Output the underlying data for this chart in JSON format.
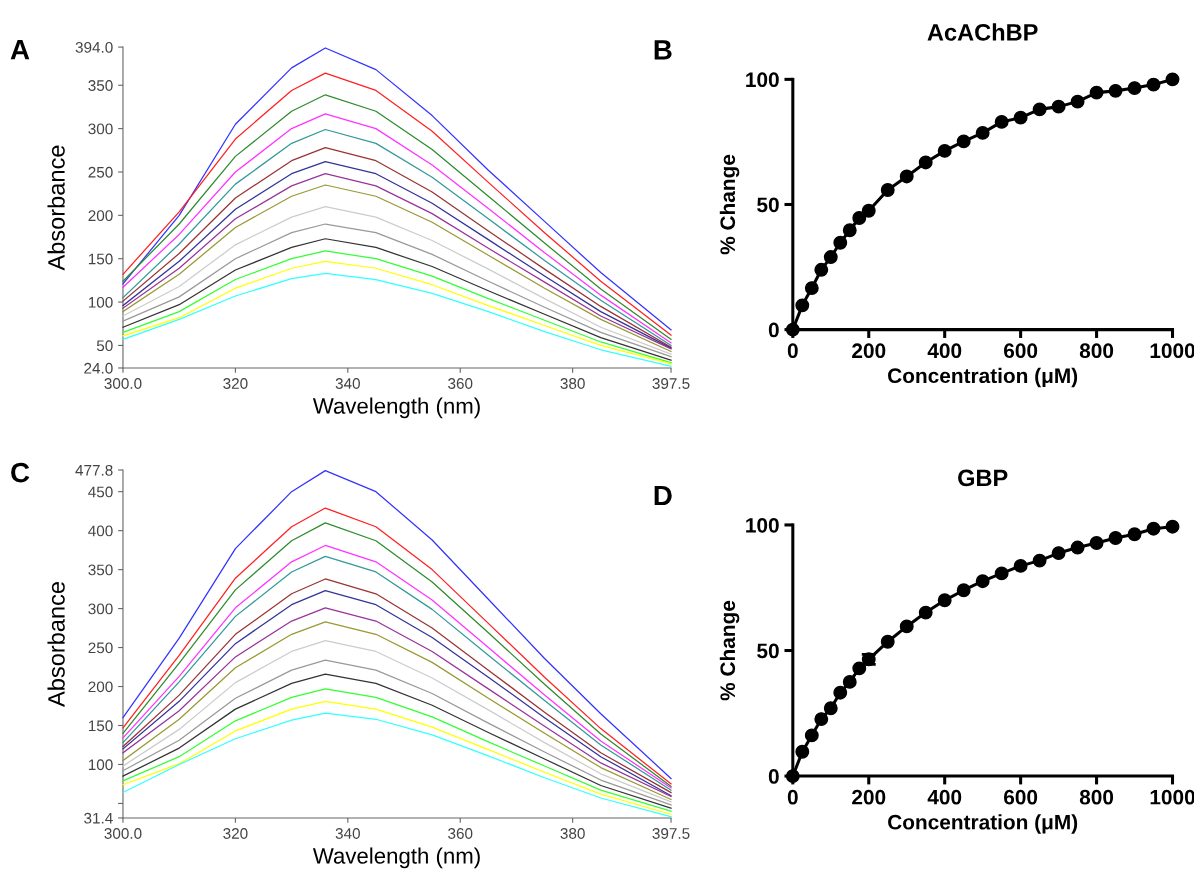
{
  "chart_data": [
    {
      "type": "line",
      "xlabel": "Wavelength (nm)",
      "ylabel": "Absorbance",
      "annotations": [
        "A"
      ],
      "grid": false,
      "legend": false,
      "marker": "none",
      "line_style": "solid",
      "x": [
        300,
        310,
        320,
        330,
        336,
        345,
        355,
        365,
        375,
        385,
        397.5
      ],
      "xlim": [
        300,
        397.5
      ],
      "xticks": [
        {
          "value": 300,
          "label": "300.0"
        },
        320,
        340,
        360,
        380,
        397.5
      ],
      "ylim": [
        24,
        394
      ],
      "yticks": [
        {
          "value": 24,
          "label": "24.0"
        },
        50,
        100,
        150,
        200,
        250,
        300,
        350,
        {
          "value": 394,
          "label": "394.0"
        }
      ],
      "series": [
        {
          "color": "#3333ff",
          "values": [
            121,
            200,
            305,
            370,
            393,
            368,
            315,
            252,
            193,
            134,
            68
          ]
        },
        {
          "color": "#ff2020",
          "values": [
            132,
            204,
            288,
            344,
            364,
            344,
            297,
            238,
            180,
            124,
            62
          ]
        },
        {
          "color": "#2e8b2e",
          "values": [
            124,
            190,
            268,
            320,
            339,
            320,
            276,
            222,
            168,
            115,
            57
          ]
        },
        {
          "color": "#ff33ff",
          "values": [
            117,
            178,
            250,
            300,
            317,
            300,
            258,
            208,
            157,
            108,
            53
          ]
        },
        {
          "color": "#339999",
          "values": [
            105,
            167,
            236,
            283,
            299,
            283,
            244,
            196,
            148,
            102,
            50
          ]
        },
        {
          "color": "#993333",
          "values": [
            101,
            156,
            220,
            263,
            278,
            263,
            227,
            182,
            138,
            95,
            48
          ]
        },
        {
          "color": "#333399",
          "values": [
            96,
            147,
            207,
            248,
            262,
            248,
            214,
            172,
            130,
            89,
            47
          ]
        },
        {
          "color": "#993399",
          "values": [
            93,
            139,
            196,
            234,
            248,
            234,
            202,
            162,
            123,
            84,
            46
          ]
        },
        {
          "color": "#999933",
          "values": [
            89,
            132,
            186,
            222,
            235,
            222,
            192,
            154,
            116,
            80,
            43
          ]
        },
        {
          "color": "#cccccc",
          "values": [
            84,
            118,
            166,
            198,
            210,
            198,
            171,
            138,
            104,
            71,
            40
          ]
        },
        {
          "color": "#999999",
          "values": [
            78,
            106,
            150,
            180,
            190,
            180,
            155,
            124,
            94,
            65,
            37
          ]
        },
        {
          "color": "#333333",
          "values": [
            71,
            97,
            137,
            163,
            173,
            163,
            141,
            113,
            86,
            59,
            33
          ]
        },
        {
          "color": "#33ff33",
          "values": [
            65,
            89,
            126,
            150,
            159,
            150,
            130,
            104,
            79,
            54,
            30
          ]
        },
        {
          "color": "#ffff00",
          "values": [
            61,
            82,
            116,
            139,
            147,
            139,
            120,
            96,
            73,
            50,
            29
          ]
        },
        {
          "color": "#33ffff",
          "values": [
            57,
            80,
            107,
            127,
            133,
            126,
            110,
            89,
            66,
            45,
            26
          ]
        }
      ]
    },
    {
      "type": "line",
      "title": "AcAChBP",
      "xlabel": "Concentration (μM)",
      "ylabel": "% Change",
      "annotations": [
        "B"
      ],
      "grid": false,
      "legend": false,
      "marker": "circle",
      "line_style": "solid",
      "x": [
        0,
        25,
        50,
        75,
        100,
        125,
        150,
        175,
        200,
        250,
        300,
        350,
        400,
        450,
        500,
        550,
        600,
        650,
        700,
        750,
        800,
        850,
        900,
        950,
        1000
      ],
      "xlim": [
        0,
        1000
      ],
      "xticks": [
        0,
        200,
        400,
        600,
        800,
        1000
      ],
      "ylim": [
        0,
        100
      ],
      "yticks": [
        0,
        50,
        100
      ],
      "series": [
        {
          "color": "#000000",
          "values": [
            0,
            9.7,
            16.6,
            23.9,
            29,
            34.7,
            39.7,
            44.6,
            47.5,
            55.8,
            61.2,
            66.8,
            71.4,
            75.2,
            78.6,
            83,
            84.7,
            88,
            89.1,
            91.1,
            94.7,
            95.4,
            96.5,
            97.9,
            100
          ]
        }
      ]
    },
    {
      "type": "line",
      "xlabel": "Wavelength (nm)",
      "ylabel": "Absorbance",
      "annotations": [
        "C"
      ],
      "grid": false,
      "legend": false,
      "marker": "none",
      "line_style": "solid",
      "x": [
        300,
        310,
        320,
        330,
        336,
        345,
        355,
        365,
        375,
        385,
        397.5
      ],
      "xlim": [
        300,
        397.5
      ],
      "xticks": [
        {
          "value": 300,
          "label": "300.0"
        },
        320,
        340,
        360,
        380,
        397.5
      ],
      "ylim": [
        31.4,
        477.8
      ],
      "yticks": [
        {
          "value": 31.4,
          "label": "31.4"
        },
        {
          "value": 50,
          "label": null
        },
        100,
        150,
        200,
        250,
        300,
        350,
        400,
        450,
        {
          "value": 477.8,
          "label": "477.8"
        }
      ],
      "series": [
        {
          "color": "#3333ff",
          "values": [
            160,
            262,
            377,
            450,
            477,
            450,
            388,
            312,
            236,
            165,
            82
          ]
        },
        {
          "color": "#ff2020",
          "values": [
            147,
            240,
            339,
            405,
            429,
            405,
            350,
            281,
            212,
            146,
            75
          ]
        },
        {
          "color": "#2e8b2e",
          "values": [
            140,
            230,
            324,
            387,
            410,
            387,
            334,
            269,
            203,
            139,
            72
          ]
        },
        {
          "color": "#ff33ff",
          "values": [
            134,
            213,
            301,
            360,
            381,
            360,
            311,
            250,
            189,
            130,
            70
          ]
        },
        {
          "color": "#339999",
          "values": [
            128,
            206,
            290,
            347,
            367,
            347,
            299,
            240,
            182,
            125,
            67
          ]
        },
        {
          "color": "#993333",
          "values": [
            123,
            189,
            267,
            319,
            338,
            319,
            275,
            221,
            167,
            115,
            64
          ]
        },
        {
          "color": "#333399",
          "values": [
            120,
            181,
            255,
            305,
            323,
            305,
            263,
            212,
            160,
            110,
            60
          ]
        },
        {
          "color": "#993399",
          "values": [
            115,
            169,
            238,
            284,
            301,
            284,
            245,
            197,
            149,
            102,
            59
          ]
        },
        {
          "color": "#999933",
          "values": [
            105,
            158,
            224,
            267,
            283,
            267,
            231,
            185,
            140,
            96,
            55
          ]
        },
        {
          "color": "#cccccc",
          "values": [
            98,
            145,
            205,
            245,
            259,
            245,
            211,
            170,
            128,
            88,
            52
          ]
        },
        {
          "color": "#999999",
          "values": [
            92,
            131,
            185,
            221,
            234,
            221,
            191,
            153,
            116,
            80,
            48
          ]
        },
        {
          "color": "#333333",
          "values": [
            85,
            121,
            171,
            204,
            216,
            204,
            176,
            141,
            107,
            73,
            44
          ]
        },
        {
          "color": "#33ff33",
          "values": [
            79,
            110,
            156,
            186,
            197,
            186,
            161,
            129,
            98,
            67,
            40
          ]
        },
        {
          "color": "#ffff00",
          "values": [
            74,
            101,
            143,
            171,
            181,
            171,
            148,
            119,
            90,
            62,
            36
          ]
        },
        {
          "color": "#33ffff",
          "values": [
            64,
            100,
            133,
            157,
            166,
            158,
            138,
            111,
            83,
            57,
            33
          ]
        }
      ]
    },
    {
      "type": "line",
      "title": "GBP",
      "xlabel": "Concentration (μM)",
      "ylabel": "% Change",
      "annotations": [
        "D"
      ],
      "grid": false,
      "legend": false,
      "marker": "circle",
      "line_style": "solid",
      "x": [
        0,
        25,
        50,
        75,
        100,
        125,
        150,
        175,
        200,
        250,
        300,
        350,
        400,
        450,
        500,
        550,
        600,
        650,
        700,
        750,
        800,
        850,
        900,
        950,
        1000
      ],
      "xlim": [
        0,
        1000
      ],
      "xticks": [
        0,
        200,
        400,
        600,
        800,
        1000
      ],
      "ylim": [
        0,
        100
      ],
      "yticks": [
        0,
        50,
        100
      ],
      "series": [
        {
          "color": "#000000",
          "values": [
            0,
            9.7,
            16.2,
            22.7,
            27,
            33.2,
            37.5,
            42.9,
            46.5,
            53.5,
            59.6,
            65.1,
            70,
            74,
            77.6,
            80.7,
            83.7,
            85.8,
            88.8,
            91,
            92.8,
            94.8,
            96.3,
            98.5,
            99.3
          ],
          "errors": [
            null,
            null,
            null,
            null,
            null,
            null,
            null,
            null,
            2,
            null,
            null,
            null,
            null,
            null,
            null,
            null,
            null,
            null,
            null,
            null,
            null,
            null,
            null,
            null,
            null
          ]
        }
      ]
    }
  ]
}
